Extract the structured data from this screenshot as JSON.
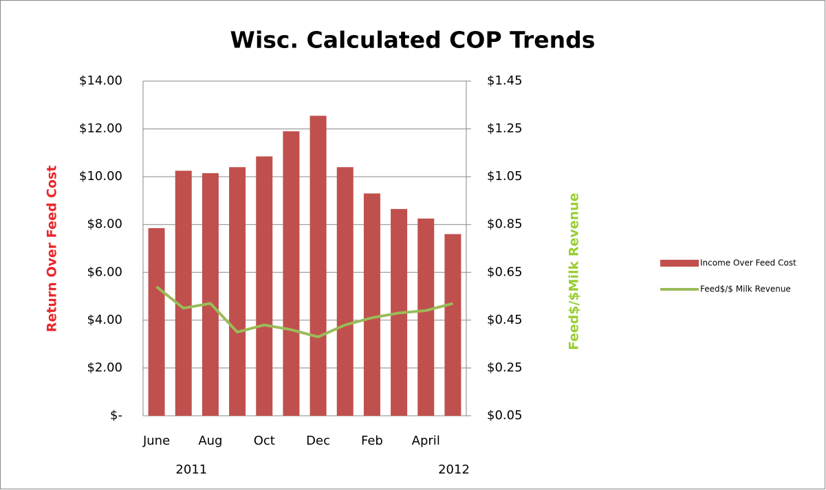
{
  "chart_data": {
    "type": "bar",
    "title": "Wisc. Calculated COP Trends",
    "y_label": "Return Over Feed Cost",
    "y2_label": "Feed$/$Milk Revenue",
    "categories": [
      "June",
      null,
      "Aug",
      null,
      "Oct",
      null,
      "Dec",
      null,
      "Feb",
      null,
      "April",
      null
    ],
    "year_labels": [
      "2011",
      "2012"
    ],
    "series": [
      {
        "name": "Income Over Feed Cost",
        "type": "bar",
        "color": "#c0504d",
        "values": [
          7.85,
          10.25,
          10.15,
          10.4,
          10.85,
          11.9,
          12.55,
          10.4,
          9.3,
          8.65,
          8.25,
          7.6
        ]
      },
      {
        "name": "Feed$/$ Milk Revenue",
        "type": "line",
        "axis": "y2",
        "color": "#9bbb59",
        "values": [
          0.59,
          0.5,
          0.52,
          0.4,
          0.43,
          0.41,
          0.38,
          0.43,
          0.46,
          0.48,
          0.49,
          0.52
        ]
      }
    ],
    "ylim": [
      0,
      14
    ],
    "yticks": [
      {
        "value": 0,
        "label": "$-"
      },
      {
        "value": 2,
        "label": "$2.00"
      },
      {
        "value": 4,
        "label": "$4.00"
      },
      {
        "value": 6,
        "label": "$6.00"
      },
      {
        "value": 8,
        "label": "$8.00"
      },
      {
        "value": 10,
        "label": "$10.00"
      },
      {
        "value": 12,
        "label": "$12.00"
      },
      {
        "value": 14,
        "label": "$14.00"
      }
    ],
    "y2lim": [
      0.05,
      1.45
    ],
    "y2ticks": [
      {
        "value": 0.05,
        "label": "$0.05"
      },
      {
        "value": 0.25,
        "label": "$0.25"
      },
      {
        "value": 0.45,
        "label": "$0.45"
      },
      {
        "value": 0.65,
        "label": "$0.65"
      },
      {
        "value": 0.85,
        "label": "$0.85"
      },
      {
        "value": 1.05,
        "label": "$1.05"
      },
      {
        "value": 1.25,
        "label": "$1.25"
      },
      {
        "value": 1.45,
        "label": "$1.45"
      }
    ],
    "grid": true,
    "legend": "right"
  }
}
